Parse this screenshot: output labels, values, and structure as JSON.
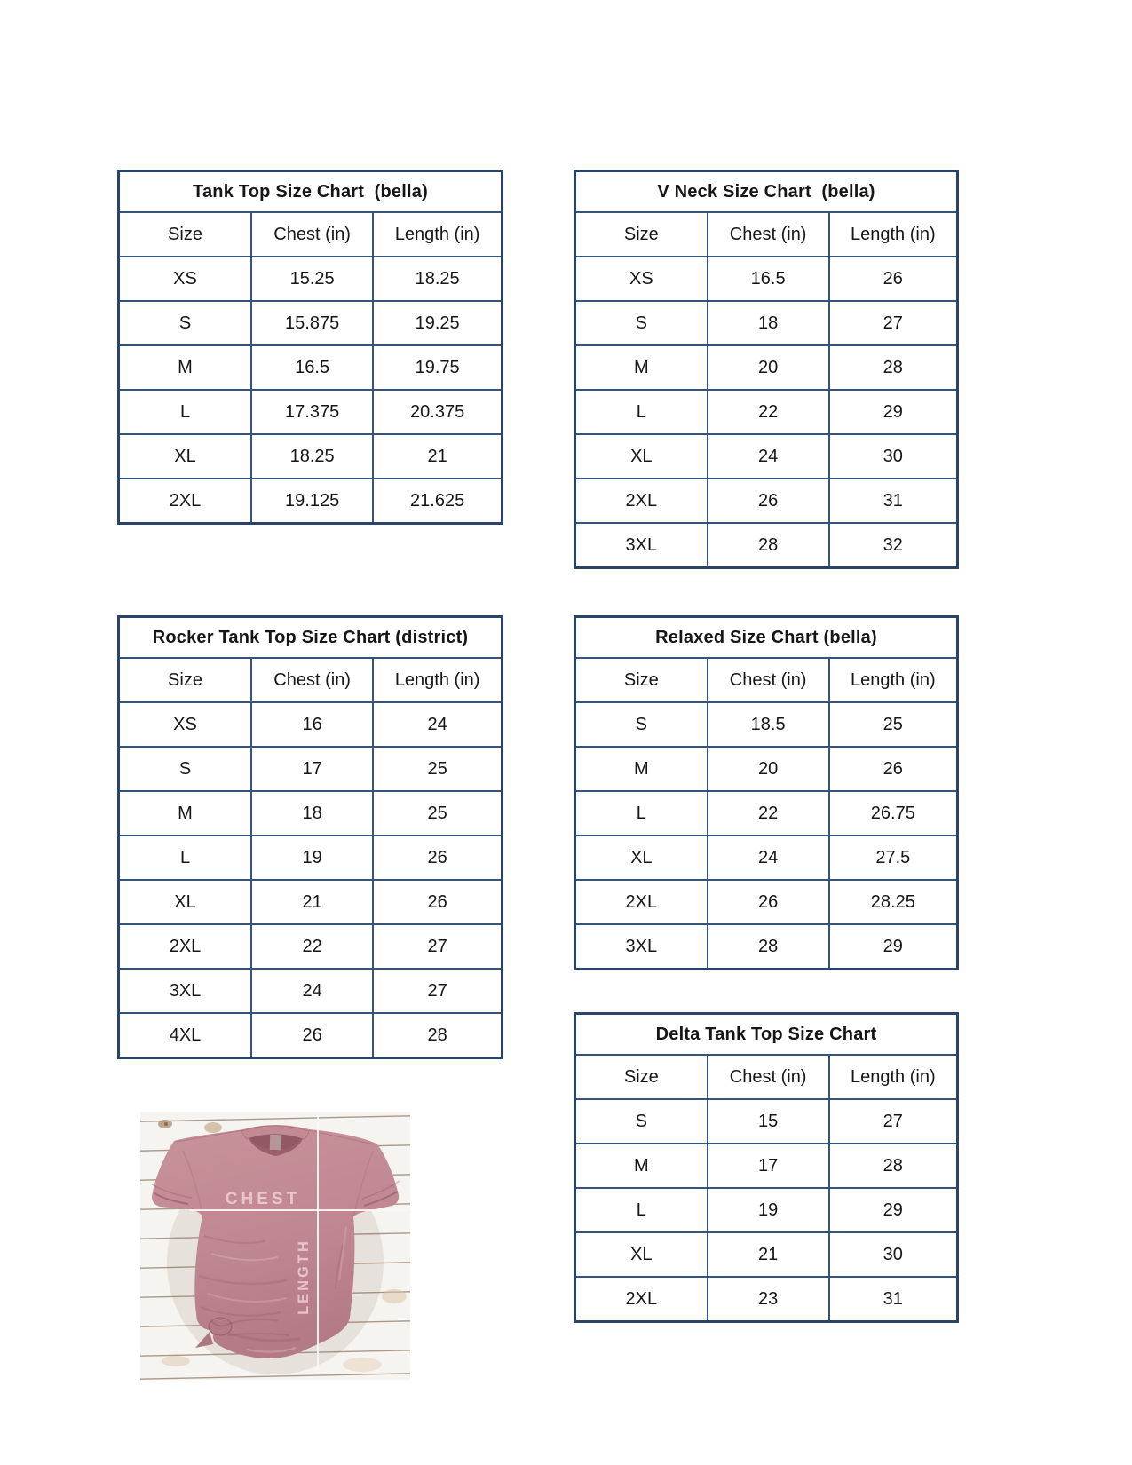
{
  "colors": {
    "table_border_outer": "#2a4368",
    "table_border_inner": "#35547c",
    "shirt_main": "#c18a93",
    "shirt_shadow": "#a96a74",
    "measure_line": "#fdf6f6",
    "label_text": "#eccad0",
    "wood_line": "#97816c"
  },
  "tables": [
    {
      "id": "tank-top",
      "title": "Tank Top Size Chart  (bella)",
      "headers": [
        "Size",
        "Chest (in)",
        "Length (in)"
      ],
      "rows": [
        [
          "XS",
          "15.25",
          "18.25"
        ],
        [
          "S",
          "15.875",
          "19.25"
        ],
        [
          "M",
          "16.5",
          "19.75"
        ],
        [
          "L",
          "17.375",
          "20.375"
        ],
        [
          "XL",
          "18.25",
          "21"
        ],
        [
          "2XL",
          "19.125",
          "21.625"
        ]
      ]
    },
    {
      "id": "v-neck",
      "title": "V Neck Size Chart  (bella)",
      "headers": [
        "Size",
        "Chest (in)",
        "Length (in)"
      ],
      "rows": [
        [
          "XS",
          "16.5",
          "26"
        ],
        [
          "S",
          "18",
          "27"
        ],
        [
          "M",
          "20",
          "28"
        ],
        [
          "L",
          "22",
          "29"
        ],
        [
          "XL",
          "24",
          "30"
        ],
        [
          "2XL",
          "26",
          "31"
        ],
        [
          "3XL",
          "28",
          "32"
        ]
      ]
    },
    {
      "id": "rocker-tank-top",
      "title": "Rocker Tank Top Size Chart (district)",
      "headers": [
        "Size",
        "Chest (in)",
        "Length (in)"
      ],
      "rows": [
        [
          "XS",
          "16",
          "24"
        ],
        [
          "S",
          "17",
          "25"
        ],
        [
          "M",
          "18",
          "25"
        ],
        [
          "L",
          "19",
          "26"
        ],
        [
          "XL",
          "21",
          "26"
        ],
        [
          "2XL",
          "22",
          "27"
        ],
        [
          "3XL",
          "24",
          "27"
        ],
        [
          "4XL",
          "26",
          "28"
        ]
      ]
    },
    {
      "id": "relaxed",
      "title": "Relaxed Size Chart (bella)",
      "headers": [
        "Size",
        "Chest (in)",
        "Length (in)"
      ],
      "rows": [
        [
          "S",
          "18.5",
          "25"
        ],
        [
          "M",
          "20",
          "26"
        ],
        [
          "L",
          "22",
          "26.75"
        ],
        [
          "XL",
          "24",
          "27.5"
        ],
        [
          "2XL",
          "26",
          "28.25"
        ],
        [
          "3XL",
          "28",
          "29"
        ]
      ]
    },
    {
      "id": "delta-tank-top",
      "title": "Delta Tank Top Size Chart",
      "headers": [
        "Size",
        "Chest (in)",
        "Length (in)"
      ],
      "rows": [
        [
          "S",
          "15",
          "27"
        ],
        [
          "M",
          "17",
          "28"
        ],
        [
          "L",
          "19",
          "29"
        ],
        [
          "XL",
          "21",
          "30"
        ],
        [
          "2XL",
          "23",
          "31"
        ]
      ]
    }
  ],
  "photo": {
    "chest_label": "CHEST",
    "length_label": "LENGTH"
  }
}
